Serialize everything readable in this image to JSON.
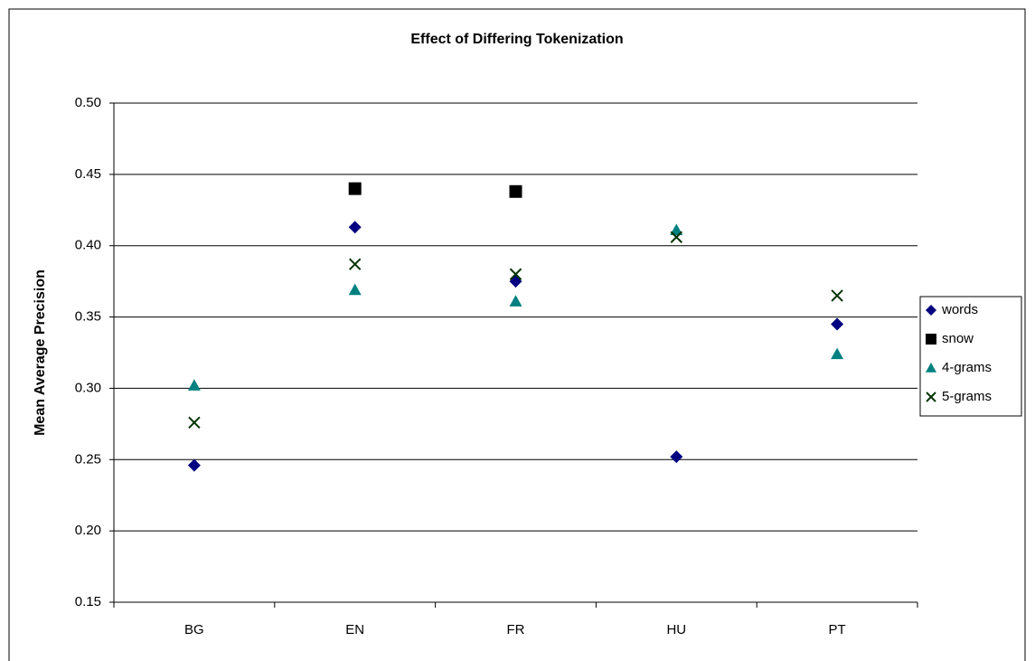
{
  "chart_data": {
    "type": "scatter",
    "title": "Effect of Differing Tokenization",
    "y_label": "Mean Average Precision",
    "categories": [
      "BG",
      "EN",
      "FR",
      "HU",
      "PT"
    ],
    "series": [
      {
        "name": "words",
        "color": "#000080",
        "marker": "diamond",
        "values": [
          0.246,
          0.413,
          0.375,
          0.252,
          0.345
        ]
      },
      {
        "name": "snow",
        "color": "#000000",
        "marker": "square",
        "values": [
          null,
          0.44,
          0.438,
          null,
          null
        ]
      },
      {
        "name": "4-grams",
        "color": "#008080",
        "marker": "triangle",
        "values": [
          0.302,
          0.369,
          0.361,
          0.411,
          0.324
        ]
      },
      {
        "name": "5-grams",
        "color": "#003300",
        "marker": "x",
        "values": [
          0.276,
          0.387,
          0.38,
          0.406,
          0.365
        ]
      }
    ],
    "ylim": [
      0.15,
      0.5
    ],
    "yticks": [
      0.15,
      {
        "value": 0.2,
        "label": "0.20"
      },
      0.25,
      {
        "value": 0.3,
        "label": "0.30"
      },
      0.35,
      {
        "value": 0.4,
        "label": "0.40"
      },
      0.45,
      {
        "value": 0.5,
        "label": "0.50"
      }
    ],
    "grid": true,
    "legend": "right"
  }
}
